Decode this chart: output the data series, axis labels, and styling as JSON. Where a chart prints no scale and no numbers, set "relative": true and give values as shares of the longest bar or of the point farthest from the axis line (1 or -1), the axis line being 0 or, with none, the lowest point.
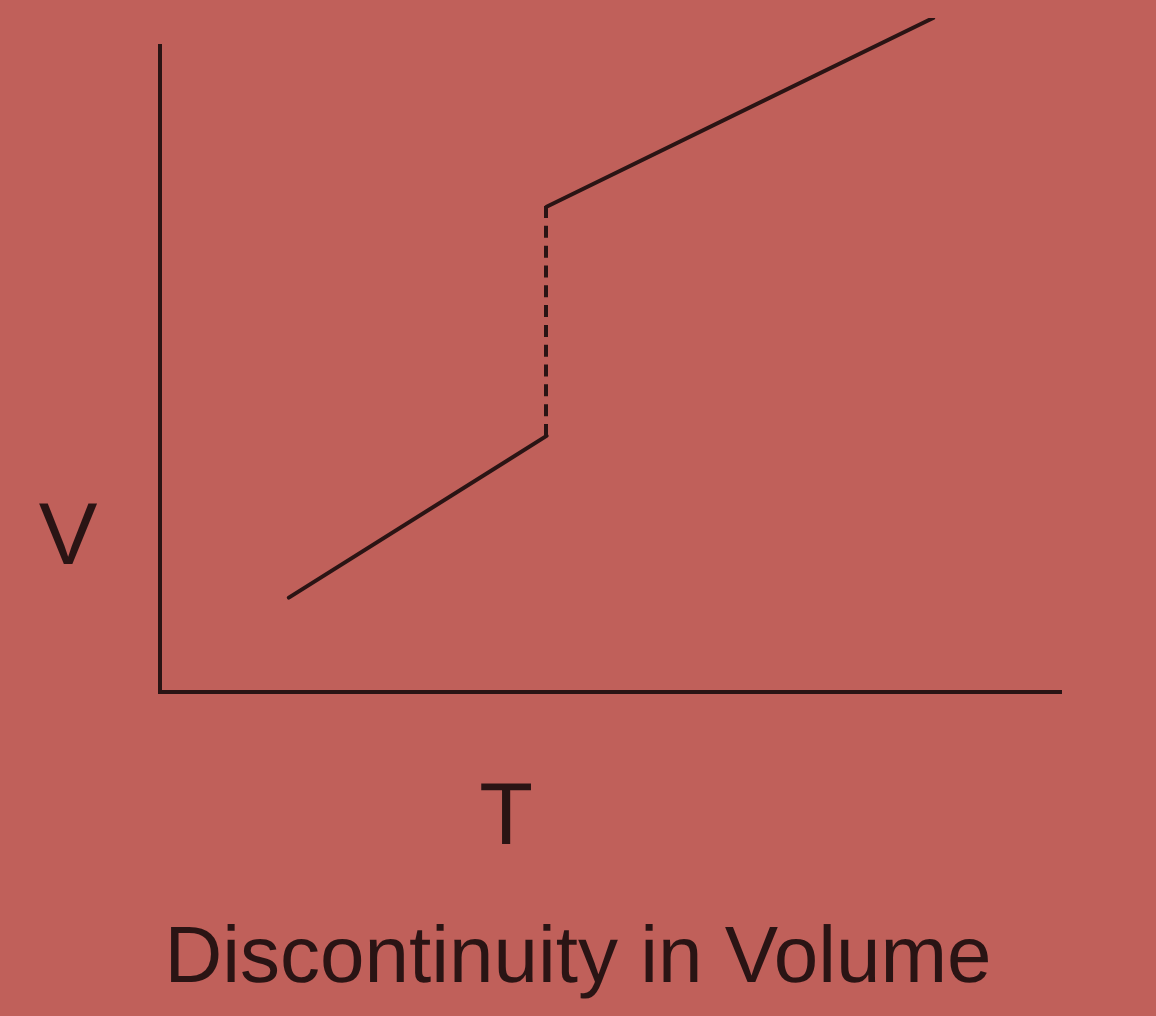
{
  "chart_data": {
    "type": "line",
    "title": "Discontinuity in Volume",
    "xlabel": "T",
    "ylabel": "V",
    "relative": true,
    "legend": false,
    "marker": "none",
    "categories": [
      null,
      null,
      null,
      null,
      null,
      null,
      null,
      null
    ],
    "series": [
      {
        "color": "#2a1414",
        "values": [
          null,
          0.14,
          null,
          0.38,
          null,
          null,
          null,
          null
        ],
        "line_style": "solid"
      },
      {
        "color": "#2a1414",
        "values": [
          null,
          null,
          null,
          0.72,
          null,
          null,
          1,
          null
        ],
        "line_style": "solid"
      }
    ]
  }
}
